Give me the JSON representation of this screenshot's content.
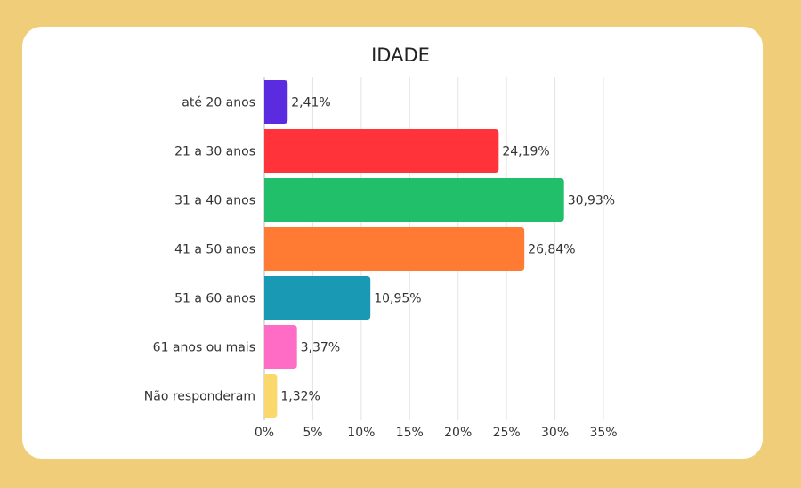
{
  "chart_data": {
    "type": "bar",
    "orientation": "horizontal",
    "title": "IDADE",
    "categories": [
      "até 20 anos",
      "21 a 30 anos",
      "31 a 40 anos",
      "41 a 50 anos",
      "51 a 60 anos",
      "61 anos ou mais",
      "Não responderam"
    ],
    "values": [
      2.41,
      24.19,
      30.93,
      26.84,
      10.95,
      3.37,
      1.32
    ],
    "data_labels": [
      "2,41%",
      "24,19%",
      "30,93%",
      "26,84%",
      "10,95%",
      "3,37%",
      "1,32%"
    ],
    "colors": [
      "#5B2BE0",
      "#FF3339",
      "#21BF69",
      "#FF7A33",
      "#1A99B5",
      "#FF6CC6",
      "#FAD86B"
    ],
    "xlim": [
      0,
      35
    ],
    "x_ticks": [
      0,
      5,
      10,
      15,
      20,
      25,
      30,
      35
    ],
    "x_tick_labels": [
      "0%",
      "5%",
      "10%",
      "15%",
      "20%",
      "25%",
      "30%",
      "35%"
    ],
    "grid": true,
    "xlabel": "",
    "ylabel": ""
  },
  "background_color": "#F0CD78"
}
